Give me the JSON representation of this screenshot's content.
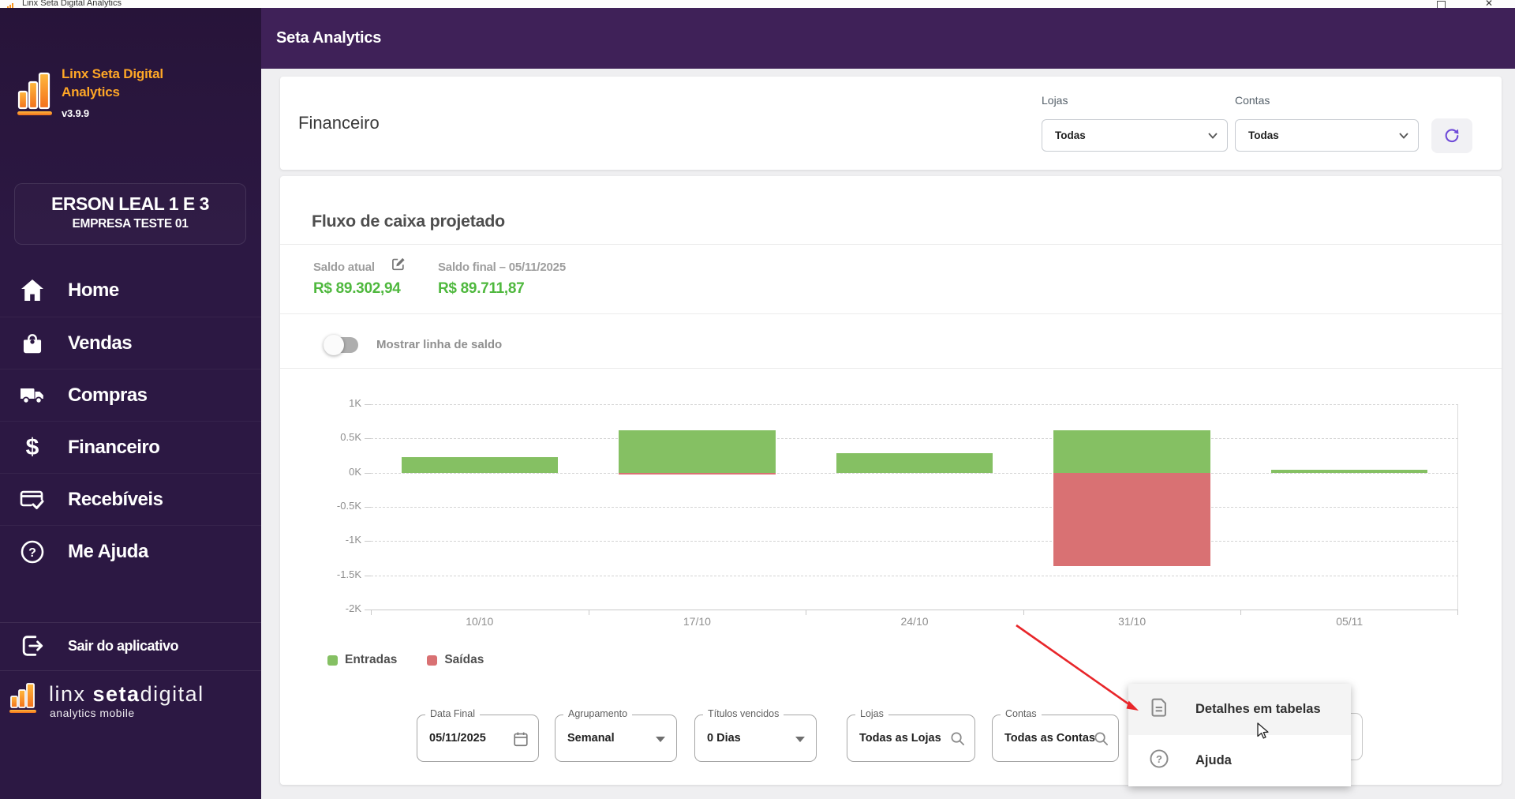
{
  "window": {
    "title": "Linx Seta Digital Analytics",
    "close_glyph": "✕"
  },
  "sidebar": {
    "logo": {
      "title_line1": "Linx Seta Digital",
      "title_line2": "Analytics",
      "version": "v3.9.9"
    },
    "user": {
      "name": "ERSON LEAL 1 E 3",
      "company": "EMPRESA TESTE 01"
    },
    "menu": [
      {
        "label": "Home",
        "icon": "home-icon"
      },
      {
        "label": "Vendas",
        "icon": "shopping-bag-icon"
      },
      {
        "label": "Compras",
        "icon": "truck-icon"
      },
      {
        "label": "Financeiro",
        "icon": "dollar-icon"
      },
      {
        "label": "Recebíveis",
        "icon": "card-check-icon"
      },
      {
        "label": "Me Ajuda",
        "icon": "help-circle-icon"
      }
    ],
    "logout_label": "Sair do aplicativo",
    "footer_logo": {
      "brand_light1": "linx ",
      "brand_bold": "seta",
      "brand_light2": "digital",
      "subtitle": "analytics mobile"
    }
  },
  "header": {
    "app_title": "Seta Analytics"
  },
  "page": {
    "title": "Financeiro",
    "filters_top": {
      "lojas_label": "Lojas",
      "lojas_value": "Todas",
      "contas_label": "Contas",
      "contas_value": "Todas"
    }
  },
  "cashflow": {
    "title": "Fluxo de caixa projetado",
    "saldo_atual_label": "Saldo atual",
    "saldo_atual_value": "R$ 89.302,94",
    "saldo_final_label": "Saldo final – 05/11/2025",
    "saldo_final_value": "R$ 89.711,87",
    "toggle_label": "Mostrar linha de saldo",
    "toggle_state": "off",
    "legend": [
      {
        "label": "Entradas",
        "color": "#85C063"
      },
      {
        "label": "Saídas",
        "color": "#D97173"
      }
    ]
  },
  "chart_data": {
    "type": "bar",
    "categories": [
      "10/10",
      "17/10",
      "24/10",
      "31/10",
      "05/11"
    ],
    "series": [
      {
        "name": "Entradas",
        "color": "#85C063",
        "values": [
          0.23,
          0.62,
          0.28,
          0.62,
          0.04
        ]
      },
      {
        "name": "Saídas",
        "color": "#D97173",
        "values": [
          0,
          -0.03,
          0,
          -1.37,
          0
        ]
      }
    ],
    "unit": "K",
    "ytick_labels": [
      "1K",
      "0.5K",
      "0K",
      "-0.5K",
      "-1K",
      "-1.5K",
      "-2K"
    ],
    "ylim": [
      -2,
      1
    ],
    "grid": "dashed-horizontal",
    "legend_position": "bottom-left"
  },
  "filter_bar": [
    {
      "label": "Data Final",
      "value": "05/11/2025",
      "icon": "calendar-icon"
    },
    {
      "label": "Agrupamento",
      "value": "Semanal",
      "icon": "dropdown-arrow-icon"
    },
    {
      "label": "Títulos vencidos",
      "value": "0 Dias",
      "icon": "dropdown-arrow-icon"
    },
    {
      "label": "Lojas",
      "value": "Todas as Lojas",
      "icon": "search-icon"
    },
    {
      "label": "Contas",
      "value": "Todas as Contas",
      "icon": "search-icon"
    }
  ],
  "context_menu": {
    "items": [
      {
        "label": "Detalhes em tabelas",
        "icon": "document-icon",
        "highlighted": true
      },
      {
        "label": "Ajuda",
        "icon": "help-circle-icon",
        "highlighted": false
      }
    ]
  },
  "icons": {
    "question_glyph": "?",
    "dollar_glyph": "$"
  },
  "colors": {
    "sidebar_bg": "#2C1843",
    "header_bg": "#3F2158",
    "accent_orange": "#F7941E",
    "money_green": "#4FB83E",
    "bar_green": "#85C063",
    "bar_red": "#D97173",
    "refresh_purple": "#6F4BD8",
    "arrow_red": "#E8262A"
  }
}
